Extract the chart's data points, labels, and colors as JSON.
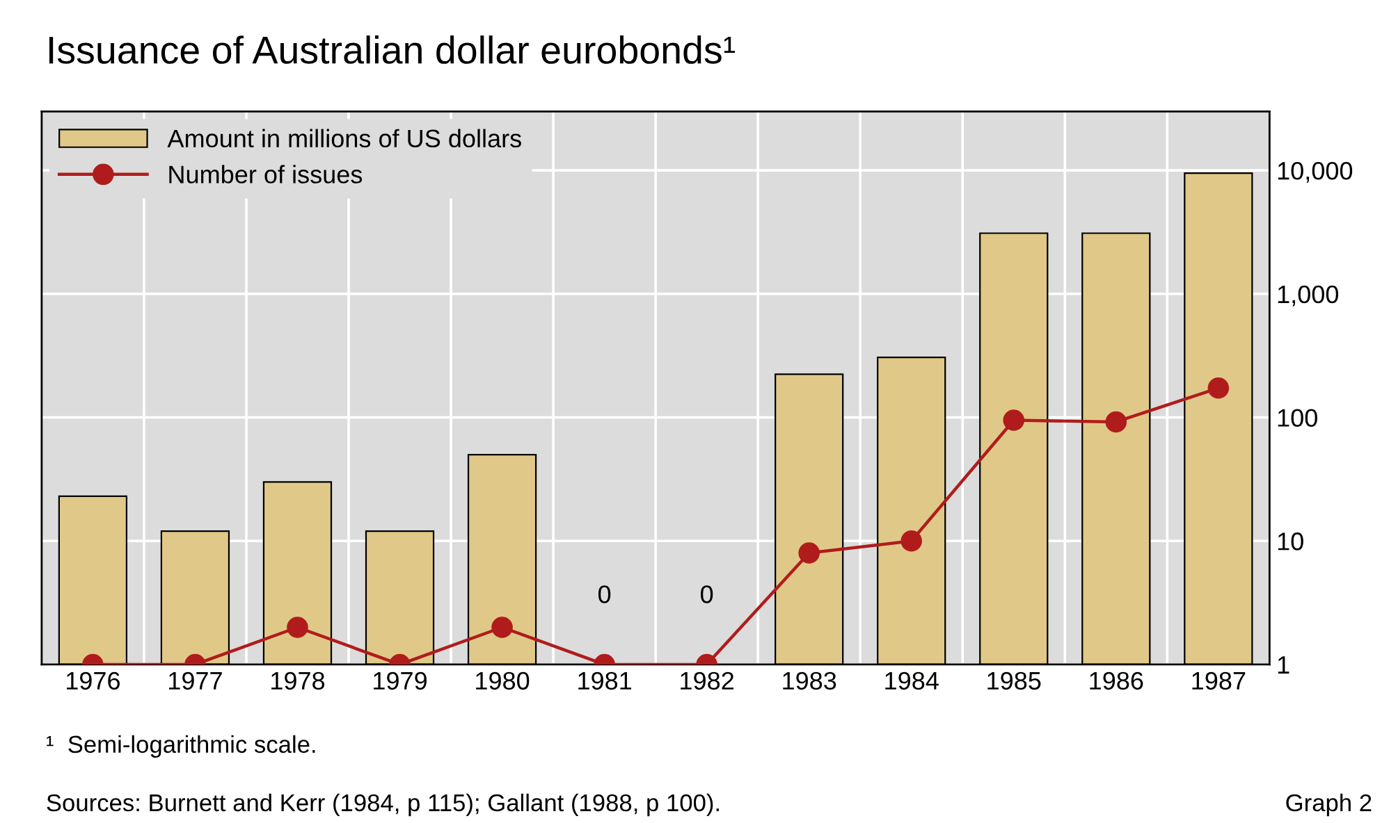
{
  "chart_data": {
    "type": "bar",
    "title": "Issuance of Australian dollar eurobonds¹",
    "categories": [
      "1976",
      "1977",
      "1978",
      "1979",
      "1980",
      "1981",
      "1982",
      "1983",
      "1984",
      "1985",
      "1986",
      "1987"
    ],
    "series": [
      {
        "name": "Amount in millions of US dollars",
        "color": "#e0c988",
        "values": [
          23,
          12,
          30,
          12,
          50,
          null,
          null,
          224,
          306,
          3100,
          3100,
          9500
        ],
        "value_labels": [
          null,
          null,
          null,
          null,
          null,
          "0",
          "0",
          null,
          null,
          null,
          null,
          null
        ]
      },
      {
        "name": "Number of issues",
        "type": "line",
        "color": "#b01c1c",
        "marker": "circle",
        "values": [
          1,
          1,
          2,
          1,
          2,
          1,
          1,
          8,
          10,
          95,
          92,
          173
        ]
      }
    ],
    "log": "y",
    "ylim": [
      1,
      30000
    ],
    "yticks": [
      1,
      10,
      100,
      {
        "value": 1000,
        "label": "1,000"
      },
      {
        "value": 10000,
        "label": "10,000"
      }
    ],
    "grid": true,
    "legend": "top left",
    "annotations": [
      "¹  Semi-logarithmic scale.",
      "Sources: Burnett and Kerr (1984, p 115); Gallant (1988, p 100).",
      "Graph 2"
    ]
  }
}
